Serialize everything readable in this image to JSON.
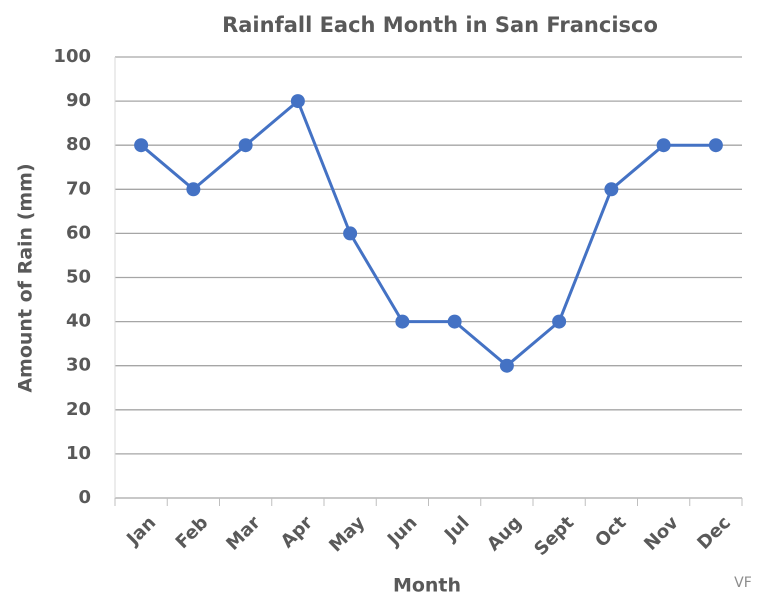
{
  "chart_data": {
    "type": "line",
    "title": "Rainfall Each Month in San Francisco",
    "x_label": "Month",
    "y_label": "Amount of Rain (mm)",
    "annotation": "VF",
    "categories": [
      "Jan",
      "Feb",
      "Mar",
      "Apr",
      "May",
      "Jun",
      "Jul",
      "Aug",
      "Sept",
      "Oct",
      "Nov",
      "Dec"
    ],
    "series": [
      {
        "name": "Rainfall",
        "color": "#4472c4",
        "values": [
          80,
          70,
          80,
          90,
          60,
          40,
          40,
          30,
          40,
          70,
          80,
          80
        ]
      }
    ],
    "ylim": [
      0,
      100
    ],
    "yticks": [
      0,
      10,
      20,
      30,
      40,
      50,
      60,
      70,
      80,
      90,
      100
    ],
    "grid": true
  }
}
